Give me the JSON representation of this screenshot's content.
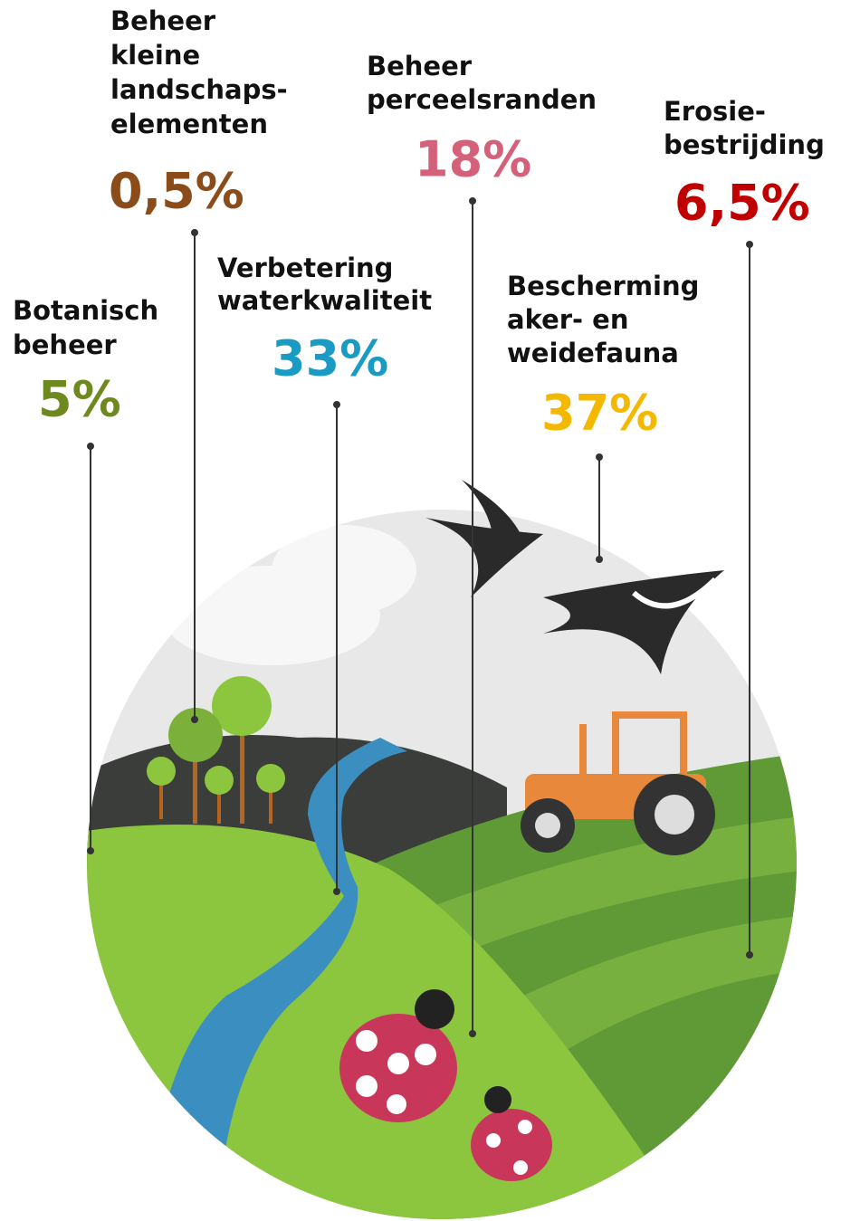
{
  "items": [
    {
      "label": [
        "Botanisch",
        "beheer"
      ],
      "value": "5%"
    },
    {
      "label": [
        "Beheer",
        "kleine",
        "landschaps-",
        "elementen"
      ],
      "value": "0,5%"
    },
    {
      "label": [
        "Verbetering",
        "waterkwaliteit"
      ],
      "value": "33%"
    },
    {
      "label": [
        "Beheer",
        "perceelsranden"
      ],
      "value": "18%"
    },
    {
      "label": [
        "Bescherming",
        "aker- en",
        "weidefauna"
      ],
      "value": "37%"
    },
    {
      "label": [
        "Erosie-",
        "bestrijding"
      ],
      "value": "6,5%"
    }
  ]
}
